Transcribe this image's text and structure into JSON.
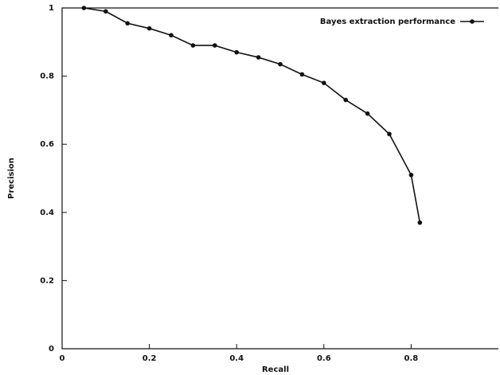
{
  "chart_data": {
    "type": "line",
    "x_label": "Recall",
    "y_label": "Precision",
    "x": [
      0.05,
      0.1,
      0.15,
      0.2,
      0.25,
      0.3,
      0.35,
      0.4,
      0.45,
      0.5,
      0.55,
      0.6,
      0.65,
      0.7,
      0.75,
      0.8,
      0.82
    ],
    "series": [
      {
        "name": "Bayes extraction performance",
        "color": "#111111",
        "values": [
          1.0,
          0.99,
          0.955,
          0.94,
          0.92,
          0.89,
          0.89,
          0.87,
          0.855,
          0.835,
          0.805,
          0.78,
          0.73,
          0.69,
          0.63,
          0.51,
          0.37
        ]
      }
    ],
    "xlim": [
      0,
      1
    ],
    "ylim": [
      0,
      1
    ],
    "xticks": [
      0,
      0.2,
      0.4,
      0.6,
      0.8
    ],
    "yticks": [
      0,
      0.2,
      0.4,
      0.6,
      0.8,
      1
    ],
    "legend": "top-right",
    "grid": false
  }
}
